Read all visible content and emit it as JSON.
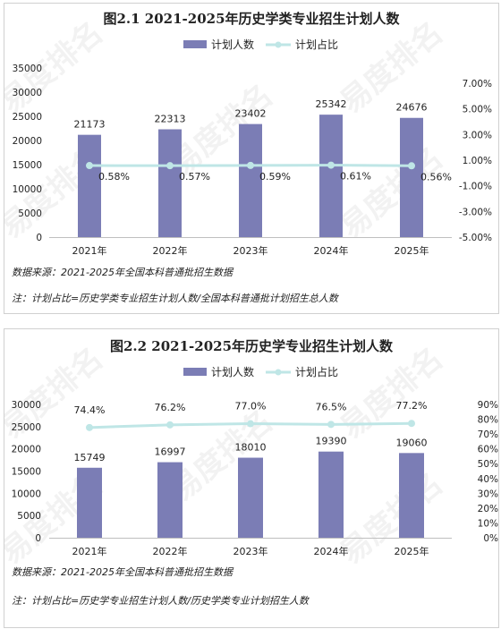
{
  "colors": {
    "bar": "#7b7db5",
    "line": "#bfe6e6",
    "text": "#222222"
  },
  "watermark": "易度排名",
  "chart_data": [
    {
      "type": "bar",
      "title": "图2.1 2021-2025年历史学类专业招生计划人数",
      "categories": [
        "2021年",
        "2022年",
        "2023年",
        "2024年",
        "2025年"
      ],
      "series": [
        {
          "name": "计划人数",
          "type": "bar",
          "axis": "left",
          "values": [
            21173,
            22313,
            23402,
            25342,
            24676
          ],
          "labels": [
            "21173",
            "22313",
            "23402",
            "25342",
            "24676"
          ]
        },
        {
          "name": "计划占比",
          "type": "line",
          "axis": "right",
          "values": [
            0.58,
            0.57,
            0.59,
            0.61,
            0.56
          ],
          "labels": [
            "0.58%",
            "0.57%",
            "0.59%",
            "0.61%",
            "0.56%"
          ]
        }
      ],
      "ylim": [
        0,
        35000
      ],
      "yticks": [
        "0",
        "5000",
        "10000",
        "15000",
        "20000",
        "25000",
        "30000",
        "35000"
      ],
      "y2lim": [
        -5,
        7
      ],
      "y2ticks": [
        "-5.00%",
        "-3.00%",
        "-1.00%",
        "1.00%",
        "3.00%",
        "5.00%",
        "7.00%"
      ],
      "legend": "top-center",
      "grid": false,
      "source": "数据来源：2021-2025年全国本科普通批招生数据",
      "note": "注：计划占比=历史学类专业招生计划人数/全国本科普通批计划招生总人数"
    },
    {
      "type": "bar",
      "title": "图2.2 2021-2025年历史学专业招生计划人数",
      "categories": [
        "2021年",
        "2022年",
        "2023年",
        "2024年",
        "2025年"
      ],
      "series": [
        {
          "name": "计划人数",
          "type": "bar",
          "axis": "left",
          "values": [
            15749,
            16997,
            18010,
            19390,
            19060
          ],
          "labels": [
            "15749",
            "16997",
            "18010",
            "19390",
            "19060"
          ]
        },
        {
          "name": "计划占比",
          "type": "line",
          "axis": "right",
          "values": [
            74.4,
            76.2,
            77.0,
            76.5,
            77.2
          ],
          "labels": [
            "74.4%",
            "76.2%",
            "77.0%",
            "76.5%",
            "77.2%"
          ]
        }
      ],
      "ylim": [
        0,
        30000
      ],
      "yticks": [
        "0",
        "5000",
        "10000",
        "15000",
        "20000",
        "25000",
        "30000"
      ],
      "y2lim": [
        0,
        90
      ],
      "y2ticks": [
        "0%",
        "10%",
        "20%",
        "30%",
        "40%",
        "50%",
        "60%",
        "70%",
        "80%",
        "90%"
      ],
      "legend": "top-center",
      "grid": false,
      "source": "数据来源：2021-2025年全国本科普通批招生数据",
      "note": "注：计划占比=历史学专业招生计划人数/历史学类专业计划招生人数"
    }
  ]
}
